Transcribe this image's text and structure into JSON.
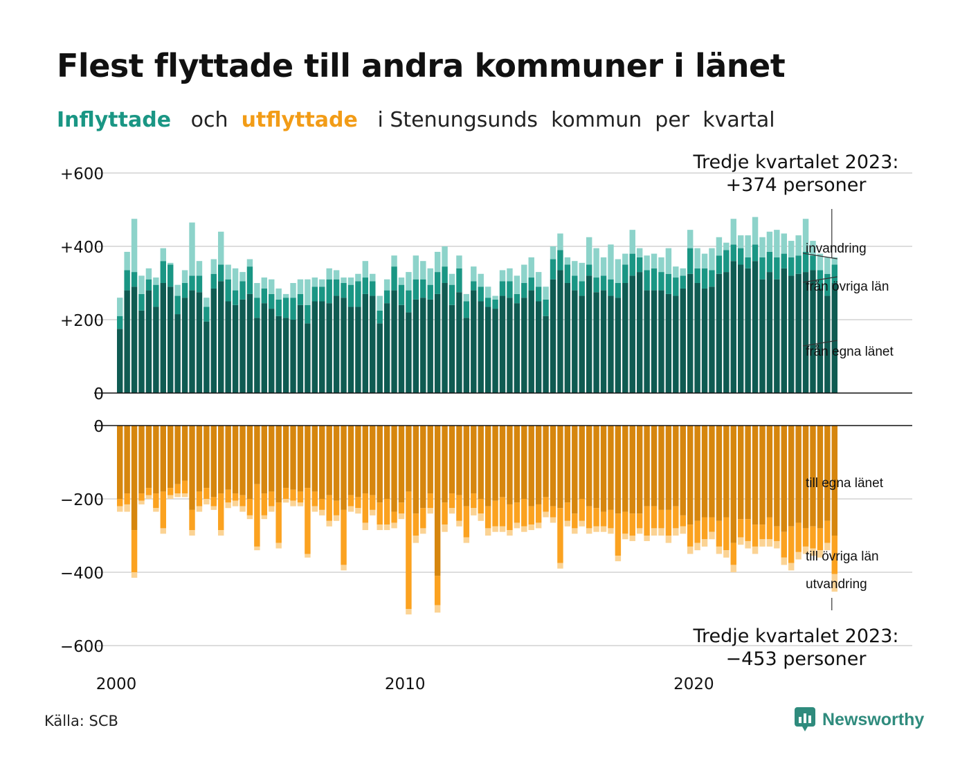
{
  "title": "Flest flyttade till andra kommuner i länet",
  "subtitle": {
    "part1": "Inflyttade",
    "part2": "och",
    "part3": "utflyttade",
    "part4": "i Stenungsunds  kommun  per  kvartal"
  },
  "source": "Källa: SCB",
  "brand": "Newsworthy",
  "colors": {
    "in_own": "#0f5b52",
    "in_other": "#1a9684",
    "in_imm": "#8dd3ca",
    "out_own": "#d6860e",
    "out_other": "#fba220",
    "out_emig": "#fbd394",
    "grid": "#dddddd",
    "brand": "#2f8b7d"
  },
  "chart_data": {
    "type": "bar",
    "stacked": true,
    "x_axis": {
      "start": 2000,
      "end": 2024,
      "ticks": [
        "2000",
        "2010",
        "2020"
      ]
    },
    "in_panel": {
      "yticks": [
        "+600",
        "+400",
        "+200",
        "0"
      ],
      "ylim": [
        0,
        600
      ],
      "annotation": {
        "line1": "Tredje kvartalet 2023:",
        "line2": "+374 personer"
      },
      "series_labels": [
        "invandring",
        "från övriga län",
        "från egna länet"
      ]
    },
    "out_panel": {
      "yticks": [
        "0",
        "−200",
        "−400",
        "−600"
      ],
      "ylim": [
        -600,
        0
      ],
      "annotation": {
        "line1": "Tredje kvartalet 2023:",
        "line2": "−453 personer"
      },
      "series_labels": [
        "till egna länet",
        "till övriga län",
        "utvandring"
      ]
    },
    "quarters_start": "2000 Q1",
    "in_own": [
      175,
      280,
      290,
      225,
      280,
      235,
      300,
      290,
      215,
      260,
      280,
      275,
      195,
      285,
      305,
      250,
      240,
      255,
      270,
      205,
      245,
      230,
      210,
      205,
      200,
      240,
      190,
      250,
      250,
      245,
      265,
      260,
      235,
      235,
      270,
      265,
      190,
      245,
      280,
      240,
      220,
      255,
      260,
      255,
      270,
      300,
      240,
      275,
      205,
      280,
      250,
      235,
      230,
      265,
      260,
      245,
      260,
      280,
      250,
      210,
      310,
      335,
      300,
      280,
      265,
      320,
      275,
      280,
      265,
      260,
      300,
      320,
      330,
      280,
      280,
      280,
      270,
      265,
      285,
      325,
      300,
      285,
      290,
      325,
      330,
      360,
      350,
      340,
      360,
      310,
      330,
      310,
      340,
      320,
      325,
      330,
      335,
      285,
      265,
      300
    ],
    "in_other": [
      35,
      55,
      40,
      45,
      30,
      60,
      60,
      60,
      50,
      40,
      40,
      45,
      40,
      40,
      45,
      60,
      40,
      50,
      75,
      55,
      40,
      40,
      45,
      55,
      60,
      30,
      50,
      40,
      40,
      65,
      45,
      40,
      60,
      70,
      45,
      40,
      35,
      35,
      65,
      55,
      60,
      55,
      50,
      40,
      60,
      45,
      55,
      65,
      45,
      25,
      40,
      25,
      25,
      40,
      45,
      25,
      40,
      35,
      40,
      45,
      55,
      55,
      50,
      40,
      40,
      30,
      40,
      40,
      45,
      40,
      50,
      60,
      40,
      55,
      60,
      50,
      55,
      50,
      35,
      70,
      40,
      55,
      45,
      50,
      60,
      45,
      45,
      30,
      45,
      60,
      55,
      60,
      40,
      50,
      50,
      55,
      40,
      50,
      60,
      50
    ],
    "in_imm": [
      50,
      50,
      145,
      50,
      30,
      20,
      35,
      5,
      30,
      35,
      145,
      40,
      25,
      40,
      90,
      40,
      60,
      25,
      20,
      40,
      30,
      40,
      30,
      10,
      40,
      40,
      70,
      25,
      20,
      30,
      25,
      15,
      20,
      20,
      45,
      20,
      40,
      30,
      30,
      20,
      50,
      65,
      50,
      45,
      55,
      55,
      30,
      35,
      20,
      40,
      35,
      30,
      10,
      30,
      35,
      50,
      50,
      55,
      40,
      35,
      35,
      45,
      20,
      40,
      50,
      75,
      80,
      50,
      95,
      65,
      30,
      65,
      25,
      40,
      40,
      40,
      70,
      30,
      20,
      50,
      55,
      40,
      60,
      50,
      20,
      70,
      35,
      60,
      75,
      55,
      55,
      75,
      55,
      45,
      55,
      90,
      40,
      45,
      45,
      20
    ],
    "out_own": [
      200,
      185,
      285,
      185,
      170,
      185,
      180,
      170,
      160,
      150,
      230,
      180,
      170,
      195,
      185,
      175,
      185,
      190,
      200,
      160,
      185,
      180,
      210,
      170,
      175,
      180,
      170,
      180,
      200,
      190,
      205,
      230,
      190,
      195,
      185,
      190,
      210,
      200,
      235,
      210,
      180,
      240,
      225,
      185,
      410,
      210,
      185,
      190,
      220,
      185,
      200,
      220,
      205,
      195,
      215,
      210,
      200,
      220,
      215,
      195,
      220,
      225,
      210,
      240,
      200,
      220,
      225,
      235,
      230,
      240,
      235,
      240,
      240,
      220,
      220,
      230,
      230,
      220,
      245,
      270,
      260,
      250,
      250,
      260,
      250,
      320,
      255,
      255,
      270,
      270,
      250,
      275,
      290,
      275,
      265,
      280,
      275,
      280,
      260,
      300
    ],
    "out_other": [
      20,
      30,
      115,
      20,
      20,
      40,
      100,
      20,
      25,
      35,
      55,
      40,
      30,
      25,
      100,
      35,
      20,
      30,
      45,
      170,
      60,
      40,
      110,
      30,
      30,
      30,
      180,
      40,
      30,
      70,
      40,
      150,
      30,
      30,
      80,
      40,
      60,
      70,
      30,
      30,
      320,
      60,
      55,
      40,
      80,
      60,
      40,
      70,
      85,
      40,
      40,
      60,
      70,
      80,
      70,
      55,
      75,
      50,
      50,
      40,
      30,
      150,
      50,
      40,
      60,
      60,
      50,
      40,
      50,
      115,
      60,
      60,
      40,
      80,
      60,
      50,
      70,
      60,
      30,
      60,
      60,
      60,
      40,
      70,
      90,
      60,
      50,
      60,
      60,
      40,
      60,
      40,
      70,
      100,
      80,
      50,
      60,
      60,
      60,
      105
    ],
    "out_emig": [
      15,
      20,
      15,
      10,
      10,
      10,
      15,
      10,
      10,
      10,
      15,
      15,
      15,
      10,
      15,
      15,
      15,
      15,
      10,
      10,
      10,
      15,
      15,
      10,
      15,
      10,
      10,
      15,
      15,
      15,
      15,
      15,
      15,
      15,
      20,
      15,
      15,
      15,
      15,
      15,
      15,
      20,
      15,
      15,
      20,
      20,
      15,
      15,
      15,
      20,
      20,
      20,
      15,
      15,
      15,
      15,
      15,
      15,
      15,
      15,
      15,
      15,
      15,
      15,
      15,
      15,
      15,
      15,
      15,
      15,
      15,
      15,
      15,
      15,
      20,
      20,
      20,
      20,
      20,
      20,
      20,
      20,
      20,
      20,
      20,
      20,
      20,
      20,
      20,
      20,
      20,
      20,
      20,
      20,
      20,
      20,
      20,
      20,
      20,
      48
    ]
  }
}
